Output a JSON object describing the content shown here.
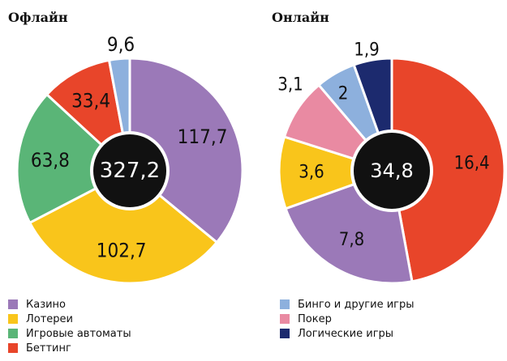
{
  "colors": {
    "casino": "#9b79b8",
    "lottery": "#f9c51b",
    "slots": "#5ab577",
    "betting": "#e8452a",
    "bingo": "#8db0dd",
    "poker": "#e98aa2",
    "skill": "#1c2a6e",
    "center": "#111111"
  },
  "legend": {
    "casino": "Казино",
    "lottery": "Лотереи",
    "slots": "Игровые автоматы",
    "betting": "Беттинг",
    "bingo": "Бинго и другие игры",
    "poker": "Покер",
    "skill": "Логические игры"
  },
  "chart_data": [
    {
      "type": "pie",
      "title": "Офлайн",
      "total_label": "327,2",
      "slices": [
        {
          "key": "casino",
          "value": 117.7,
          "label": "117,7"
        },
        {
          "key": "lottery",
          "value": 102.7,
          "label": "102,7"
        },
        {
          "key": "slots",
          "value": 63.8,
          "label": "63,8"
        },
        {
          "key": "betting",
          "value": 33.4,
          "label": "33,4"
        },
        {
          "key": "bingo",
          "value": 9.6,
          "label": "9,6"
        }
      ]
    },
    {
      "type": "pie",
      "title": "Онлайн",
      "total_label": "34,8",
      "slices": [
        {
          "key": "betting",
          "value": 16.4,
          "label": "16,4"
        },
        {
          "key": "casino",
          "value": 7.8,
          "label": "7,8"
        },
        {
          "key": "lottery",
          "value": 3.6,
          "label": "3,6"
        },
        {
          "key": "poker",
          "value": 3.1,
          "label": "3,1"
        },
        {
          "key": "bingo",
          "value": 2.0,
          "label": "2"
        },
        {
          "key": "skill",
          "value": 1.9,
          "label": "1,9"
        }
      ]
    }
  ]
}
